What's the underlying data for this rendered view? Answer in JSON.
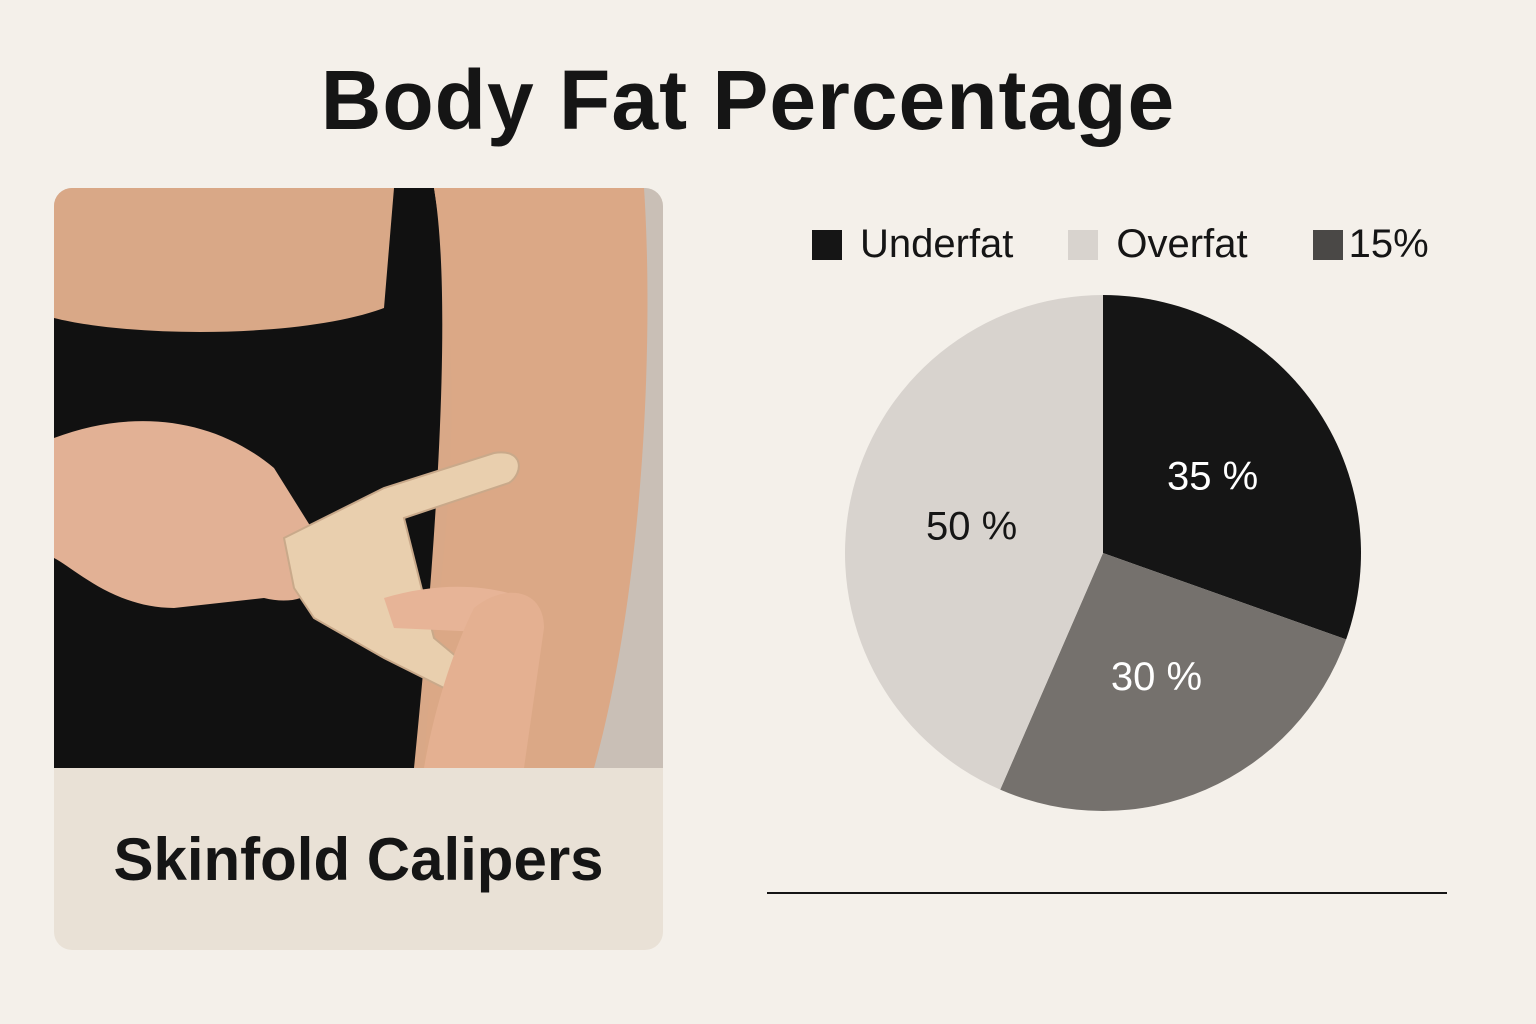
{
  "title": "Body Fat Percentage",
  "card": {
    "caption": "Skinfold Calipers"
  },
  "chart_data": {
    "type": "pie",
    "legend": [
      {
        "label": "Underfat",
        "color": "#151515"
      },
      {
        "label": "Overfat",
        "color": "#d8d3ce"
      },
      {
        "label": "15%",
        "color": "#4a4846"
      }
    ],
    "legend_position": "top",
    "slices": [
      {
        "label": "35 %",
        "value": 35,
        "color": "#151515",
        "text_color": "#ffffff"
      },
      {
        "label": "30 %",
        "value": 30,
        "color": "#75716d",
        "text_color": "#ffffff"
      },
      {
        "label": "50 %",
        "value": 50,
        "color": "#d8d3ce",
        "text_color": "#151515"
      }
    ]
  }
}
